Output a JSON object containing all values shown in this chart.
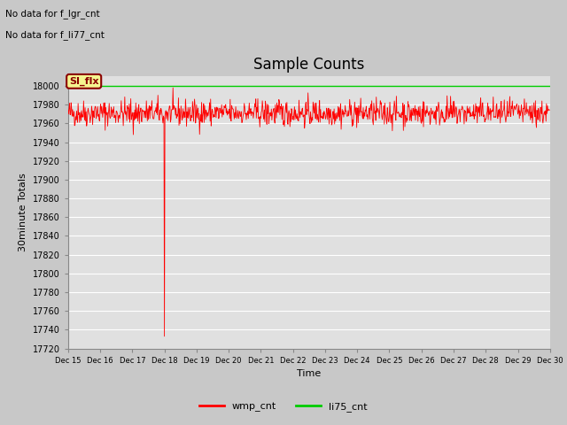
{
  "title": "Sample Counts",
  "xlabel": "Time",
  "ylabel": "30minute Totals",
  "no_data_text_1": "No data for f_lgr_cnt",
  "no_data_text_2": "No data for f_li77_cnt",
  "si_flx_label": "SI_flx",
  "legend_entries": [
    "wmp_cnt",
    "li75_cnt"
  ],
  "legend_colors": [
    "#ff0000",
    "#00cc00"
  ],
  "ylim": [
    17720,
    18010
  ],
  "yticks": [
    17720,
    17740,
    17760,
    17780,
    17800,
    17820,
    17840,
    17860,
    17880,
    17900,
    17920,
    17940,
    17960,
    17980,
    18000
  ],
  "xtick_labels": [
    "Dec 15",
    "Dec 16",
    "Dec 17",
    "Dec 18",
    "Dec 19",
    "Dec 20",
    "Dec 21",
    "Dec 22",
    "Dec 23",
    "Dec 24",
    "Dec 25",
    "Dec 26",
    "Dec 27",
    "Dec 28",
    "Dec 29",
    "Dec 30"
  ],
  "n_points": 960,
  "wmp_base": 17971,
  "wmp_noise": 7,
  "wmp_drop_index": 192,
  "wmp_drop_value": 17733,
  "wmp_dip_index": 130,
  "wmp_dip_value": 17948,
  "li75_value": 18000,
  "fig_bg_color": "#c8c8c8",
  "plot_bg_color": "#e0e0e0",
  "grid_color": "#ffffff",
  "wmp_color": "#ff0000",
  "li75_color": "#00cc00",
  "title_fontsize": 12,
  "axis_fontsize": 7,
  "label_fontsize": 8,
  "tick_fontsize": 7
}
